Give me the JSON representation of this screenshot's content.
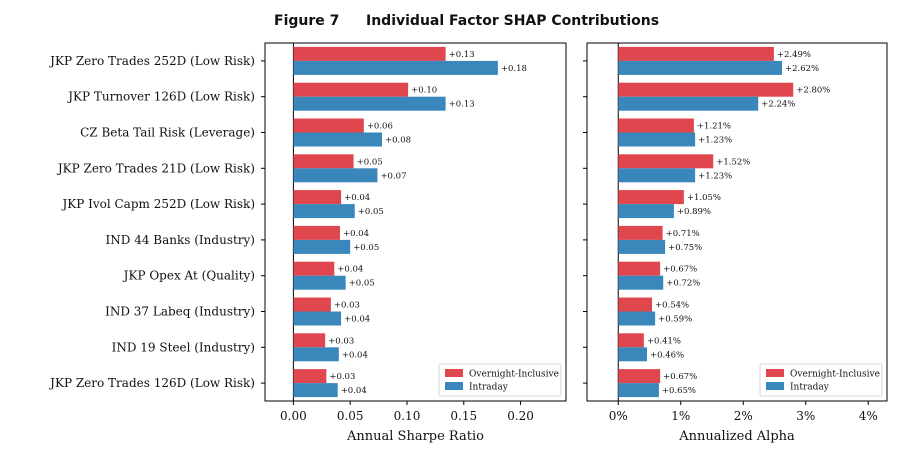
{
  "figure_title": {
    "number": "Figure 7",
    "text": "Individual Factor SHAP Contributions"
  },
  "colors": {
    "overnight": "#e0464e",
    "intraday": "#3a87bb"
  },
  "chart_data": [
    {
      "type": "bar",
      "orientation": "horizontal",
      "categories": [
        "JKP Zero Trades 252D (Low Risk)",
        "JKP Turnover 126D (Low Risk)",
        "CZ Beta Tail Risk (Leverage)",
        "JKP Zero Trades 21D (Low Risk)",
        "JKP Ivol Capm 252D (Low Risk)",
        "IND 44 Banks (Industry)",
        "JKP Opex At (Quality)",
        "IND 37 Labeq (Industry)",
        "IND 19 Steel (Industry)",
        "JKP Zero Trades 126D (Low Risk)"
      ],
      "series": [
        {
          "name": "Overnight-Inclusive",
          "values": [
            0.134,
            0.101,
            0.062,
            0.053,
            0.042,
            0.041,
            0.036,
            0.033,
            0.028,
            0.029
          ],
          "labels": [
            "+0.13",
            "+0.10",
            "+0.06",
            "+0.05",
            "+0.04",
            "+0.04",
            "+0.04",
            "+0.03",
            "+0.03",
            "+0.03"
          ]
        },
        {
          "name": "Intraday",
          "values": [
            0.18,
            0.134,
            0.078,
            0.074,
            0.054,
            0.05,
            0.046,
            0.042,
            0.04,
            0.039
          ],
          "labels": [
            "+0.18",
            "+0.13",
            "+0.08",
            "+0.07",
            "+0.05",
            "+0.05",
            "+0.05",
            "+0.04",
            "+0.04",
            "+0.04"
          ]
        }
      ],
      "xlabel": "Annual Sharpe Ratio",
      "xlim": [
        -0.025,
        0.24
      ],
      "xticks": [
        0.0,
        0.05,
        0.1,
        0.15,
        0.2
      ],
      "xtick_labels": [
        "0.00",
        "0.05",
        "0.10",
        "0.15",
        "0.20"
      ],
      "legend": "bottom-right",
      "grid": false
    },
    {
      "type": "bar",
      "orientation": "horizontal",
      "categories": [
        "JKP Zero Trades 252D (Low Risk)",
        "JKP Turnover 126D (Low Risk)",
        "CZ Beta Tail Risk (Leverage)",
        "JKP Zero Trades 21D (Low Risk)",
        "JKP Ivol Capm 252D (Low Risk)",
        "IND 44 Banks (Industry)",
        "JKP Opex At (Quality)",
        "IND 37 Labeq (Industry)",
        "IND 19 Steel (Industry)",
        "JKP Zero Trades 126D (Low Risk)"
      ],
      "series": [
        {
          "name": "Overnight-Inclusive",
          "values": [
            2.49,
            2.8,
            1.21,
            1.52,
            1.05,
            0.71,
            0.67,
            0.54,
            0.41,
            0.67
          ],
          "labels": [
            "+2.49%",
            "+2.80%",
            "+1.21%",
            "+1.52%",
            "+1.05%",
            "+0.71%",
            "+0.67%",
            "+0.54%",
            "+0.41%",
            "+0.67%"
          ]
        },
        {
          "name": "Intraday",
          "values": [
            2.62,
            2.24,
            1.23,
            1.23,
            0.89,
            0.75,
            0.72,
            0.59,
            0.46,
            0.65
          ],
          "labels": [
            "+2.62%",
            "+2.24%",
            "+1.23%",
            "+1.23%",
            "+0.89%",
            "+0.75%",
            "+0.72%",
            "+0.59%",
            "+0.46%",
            "+0.65%"
          ]
        }
      ],
      "xlabel": "Annualized Alpha",
      "xlim": [
        -0.5,
        4.3
      ],
      "xticks": [
        0,
        1,
        2,
        3,
        4
      ],
      "xtick_labels": [
        "0%",
        "1%",
        "2%",
        "3%",
        "4%"
      ],
      "legend": "bottom-right",
      "grid": false
    }
  ]
}
